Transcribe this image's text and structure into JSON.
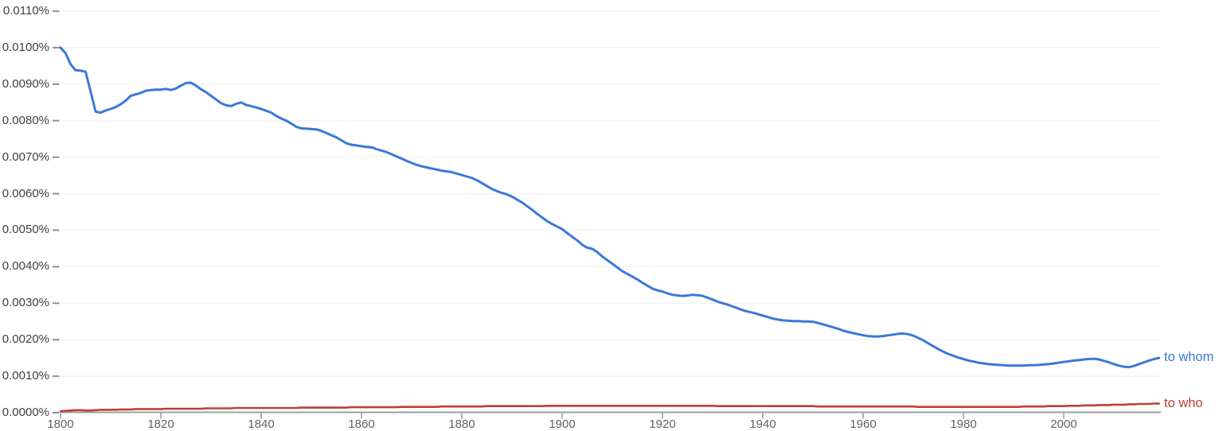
{
  "style": {
    "background": "#ffffff",
    "grid_color": "#f2f2f2",
    "axis_line_color": "#9aa0a6",
    "tick_mark_color": "#9aa0a6",
    "y_tick_dash_color": "#8d9196",
    "y_label_color": "#3c4043",
    "x_label_color": "#5f6368"
  },
  "chart_data": {
    "type": "line",
    "title": "",
    "xlabel": "",
    "ylabel": "",
    "xlim": [
      1800,
      2019
    ],
    "ylim_percent": [
      0.0,
      0.011
    ],
    "x_tick_labels": [
      "1800",
      "1820",
      "1840",
      "1860",
      "1880",
      "1900",
      "1920",
      "1940",
      "1960",
      "1980",
      "2000"
    ],
    "y_tick_labels": [
      "0.0000%",
      "0.0010%",
      "0.0020%",
      "0.0030%",
      "0.0040%",
      "0.0050%",
      "0.0060%",
      "0.0070%",
      "0.0080%",
      "0.0090%",
      "0.0100%",
      "0.0110%"
    ],
    "grid": "faint-horizontal-only",
    "legend_position": "labels-at-right-end-of-lines",
    "x_start_year": 1800,
    "x_step_years": 1,
    "value_unit_note": "series values are frequency in units of 0.0001 percent (multiply by 0.0001 to get %)",
    "series": [
      {
        "name": "to whom",
        "color": "#3b78d8",
        "values_e4": [
          100.0,
          98.5,
          95.5,
          93.8,
          93.7,
          93.4,
          88.0,
          82.5,
          82.2,
          82.8,
          83.2,
          83.7,
          84.5,
          85.5,
          86.8,
          87.2,
          87.6,
          88.2,
          88.4,
          88.5,
          88.5,
          88.7,
          88.4,
          88.8,
          89.6,
          90.3,
          90.4,
          89.6,
          88.6,
          87.8,
          86.8,
          85.8,
          84.8,
          84.2,
          84.0,
          84.6,
          85.0,
          84.3,
          84.0,
          83.6,
          83.2,
          82.7,
          82.2,
          81.3,
          80.6,
          80.0,
          79.2,
          78.3,
          77.9,
          77.8,
          77.7,
          77.6,
          77.2,
          76.6,
          76.0,
          75.4,
          74.6,
          73.8,
          73.4,
          73.2,
          73.0,
          72.8,
          72.7,
          72.2,
          71.8,
          71.4,
          70.8,
          70.2,
          69.6,
          69.0,
          68.4,
          67.9,
          67.5,
          67.2,
          66.9,
          66.6,
          66.3,
          66.1,
          65.9,
          65.5,
          65.1,
          64.7,
          64.3,
          63.7,
          62.9,
          62.1,
          61.3,
          60.7,
          60.2,
          59.8,
          59.2,
          58.4,
          57.6,
          56.6,
          55.6,
          54.5,
          53.5,
          52.5,
          51.7,
          51.0,
          50.3,
          49.2,
          48.2,
          47.2,
          46.0,
          45.2,
          44.9,
          44.0,
          42.8,
          41.8,
          40.8,
          39.8,
          38.8,
          38.0,
          37.3,
          36.5,
          35.6,
          34.8,
          34.0,
          33.5,
          33.2,
          32.7,
          32.3,
          32.1,
          32.0,
          32.1,
          32.3,
          32.2,
          32.0,
          31.5,
          31.0,
          30.4,
          30.0,
          29.6,
          29.1,
          28.6,
          28.1,
          27.7,
          27.4,
          27.0,
          26.6,
          26.2,
          25.8,
          25.5,
          25.3,
          25.2,
          25.1,
          25.1,
          25.0,
          25.0,
          24.9,
          24.6,
          24.2,
          23.8,
          23.4,
          23.0,
          22.5,
          22.1,
          21.8,
          21.5,
          21.2,
          21.0,
          20.9,
          20.9,
          21.0,
          21.2,
          21.4,
          21.6,
          21.7,
          21.5,
          21.1,
          20.5,
          19.8,
          19.0,
          18.2,
          17.4,
          16.7,
          16.1,
          15.6,
          15.1,
          14.7,
          14.3,
          14.0,
          13.7,
          13.5,
          13.3,
          13.2,
          13.1,
          13.0,
          12.9,
          12.9,
          12.9,
          12.9,
          13.0,
          13.0,
          13.1,
          13.2,
          13.3,
          13.5,
          13.7,
          13.9,
          14.1,
          14.3,
          14.4,
          14.6,
          14.7,
          14.8,
          14.6,
          14.2,
          13.8,
          13.3,
          12.9,
          12.6,
          12.5,
          12.8,
          13.3,
          13.8,
          14.3,
          14.7,
          15.0
        ]
      },
      {
        "name": "to who",
        "color": "#bc4136",
        "values_e4": [
          0.4,
          0.5,
          0.6,
          0.7,
          0.7,
          0.6,
          0.6,
          0.7,
          0.8,
          0.8,
          0.8,
          0.8,
          0.9,
          0.9,
          0.9,
          1.0,
          1.0,
          1.0,
          1.0,
          1.0,
          1.0,
          1.1,
          1.1,
          1.1,
          1.1,
          1.1,
          1.1,
          1.1,
          1.1,
          1.2,
          1.2,
          1.2,
          1.2,
          1.2,
          1.2,
          1.3,
          1.3,
          1.3,
          1.3,
          1.3,
          1.3,
          1.3,
          1.3,
          1.3,
          1.3,
          1.3,
          1.3,
          1.3,
          1.4,
          1.4,
          1.4,
          1.4,
          1.4,
          1.4,
          1.4,
          1.4,
          1.4,
          1.4,
          1.5,
          1.5,
          1.5,
          1.5,
          1.5,
          1.5,
          1.5,
          1.5,
          1.5,
          1.5,
          1.6,
          1.6,
          1.6,
          1.6,
          1.6,
          1.6,
          1.6,
          1.6,
          1.7,
          1.7,
          1.7,
          1.7,
          1.7,
          1.7,
          1.7,
          1.7,
          1.7,
          1.8,
          1.8,
          1.8,
          1.8,
          1.8,
          1.8,
          1.8,
          1.8,
          1.8,
          1.8,
          1.8,
          1.8,
          1.9,
          1.9,
          1.9,
          1.9,
          1.9,
          1.9,
          1.9,
          1.9,
          1.9,
          1.9,
          1.9,
          1.9,
          1.9,
          1.9,
          1.9,
          1.9,
          1.9,
          1.9,
          1.9,
          1.9,
          1.9,
          1.9,
          1.9,
          1.9,
          1.9,
          1.9,
          1.9,
          1.9,
          1.9,
          1.9,
          1.9,
          1.9,
          1.9,
          1.9,
          1.8,
          1.8,
          1.8,
          1.8,
          1.8,
          1.8,
          1.8,
          1.8,
          1.8,
          1.8,
          1.8,
          1.8,
          1.8,
          1.8,
          1.8,
          1.8,
          1.8,
          1.8,
          1.8,
          1.8,
          1.7,
          1.7,
          1.7,
          1.7,
          1.7,
          1.7,
          1.7,
          1.7,
          1.7,
          1.7,
          1.7,
          1.7,
          1.7,
          1.7,
          1.7,
          1.7,
          1.7,
          1.7,
          1.7,
          1.7,
          1.6,
          1.6,
          1.6,
          1.6,
          1.6,
          1.6,
          1.6,
          1.6,
          1.6,
          1.6,
          1.6,
          1.6,
          1.6,
          1.6,
          1.6,
          1.6,
          1.6,
          1.6,
          1.6,
          1.6,
          1.6,
          1.7,
          1.7,
          1.7,
          1.7,
          1.7,
          1.8,
          1.8,
          1.8,
          1.8,
          1.9,
          1.9,
          1.9,
          2.0,
          2.0,
          2.0,
          2.1,
          2.1,
          2.1,
          2.2,
          2.2,
          2.2,
          2.3,
          2.3,
          2.4,
          2.4,
          2.4,
          2.5,
          2.5
        ]
      }
    ]
  }
}
